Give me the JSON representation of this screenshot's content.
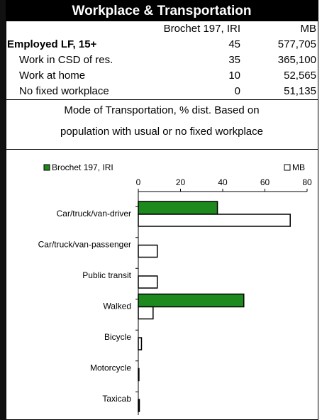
{
  "header": {
    "title": "Workplace & Transportation"
  },
  "table": {
    "columns": [
      "Brochet 197, IRI",
      "MB"
    ],
    "rows": [
      [
        "Employed LF, 15+",
        "45",
        "577,705"
      ],
      [
        "Work in CSD of res.",
        "35",
        "365,100"
      ],
      [
        "Work at home",
        "10",
        "52,565"
      ],
      [
        "No fixed workplace",
        "0",
        "51,135"
      ]
    ]
  },
  "caption": [
    "Mode of Transportation, % dist. Based on",
    "population with usual or no fixed workplace"
  ],
  "chart_data": {
    "type": "bar",
    "orientation": "horizontal",
    "categories": [
      "Car/truck/van-driver",
      "Car/truck/van-passenger",
      "Public transit",
      "Walked",
      "Bicycle",
      "Motorcycle",
      "Taxicab"
    ],
    "series": [
      {
        "name": "Brochet 197, IRI",
        "color": "#1e8a1e",
        "values": [
          37.5,
          0,
          0,
          50,
          0,
          0,
          0
        ]
      },
      {
        "name": "MB",
        "color": "#ffffff",
        "values": [
          72,
          9,
          9,
          7,
          1.5,
          0.3,
          0.5
        ]
      }
    ],
    "xlim": [
      0,
      80
    ],
    "xticks": [
      0,
      20,
      40,
      60,
      80
    ],
    "legend": "top"
  }
}
